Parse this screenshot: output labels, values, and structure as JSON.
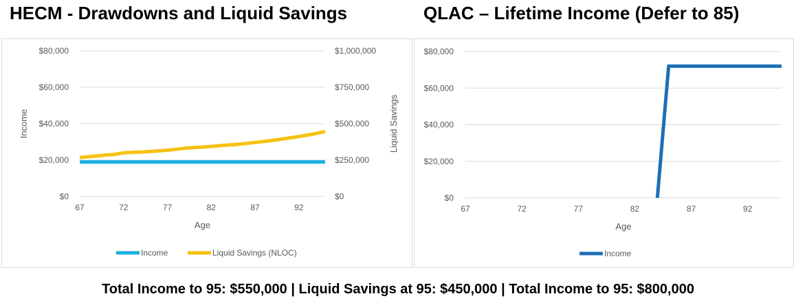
{
  "titles": {
    "left": "HECM - Drawdowns and Liquid Savings",
    "right": "QLAC – Lifetime Income (Defer to 85)"
  },
  "footer": "Total Income to 95: $550,000 | Liquid Savings at 95: $450,000 | Total Income to 95: $800,000",
  "colors": {
    "income_light": "#1aafe0",
    "savings": "#f5c211",
    "income_dark": "#1d6fb8",
    "grid": "#d9d9d9",
    "text": "#595959"
  },
  "chart_data": [
    {
      "type": "line",
      "title": "HECM - Drawdowns and Liquid Savings",
      "xlabel": "Age",
      "ylabel": "Income",
      "y2label": "Liquid Savings",
      "xlim": [
        67,
        95
      ],
      "ylim": [
        0,
        80000
      ],
      "y2lim": [
        0,
        1000000
      ],
      "x_ticks": [
        "67",
        "72",
        "77",
        "82",
        "87",
        "92"
      ],
      "y_ticks": [
        "$0",
        "$20,000",
        "$40,000",
        "$60,000",
        "$80,000"
      ],
      "y2_ticks": [
        "$0",
        "$250,000",
        "$500,000",
        "$750,000",
        "$1,000,000"
      ],
      "grid": true,
      "legend_position": "bottom",
      "series": [
        {
          "name": "Income",
          "axis": "left",
          "color": "#1aafe0",
          "x": [
            67,
            95
          ],
          "values": [
            19000,
            19000
          ]
        },
        {
          "name": "Liquid Savings (NLOC)",
          "axis": "right",
          "color": "#f5c211",
          "x": [
            67,
            68,
            69,
            70,
            71,
            72,
            73,
            74,
            75,
            76,
            77,
            78,
            79,
            80,
            81,
            82,
            83,
            84,
            85,
            86,
            87,
            88,
            89,
            90,
            91,
            92,
            93,
            94,
            95
          ],
          "values": [
            268000,
            273000,
            279000,
            285000,
            289000,
            300000,
            303000,
            305000,
            309000,
            313000,
            318000,
            324000,
            331000,
            336000,
            339000,
            344000,
            349000,
            354000,
            358000,
            364000,
            371000,
            378000,
            385000,
            394000,
            403000,
            412000,
            422000,
            433000,
            446000
          ]
        }
      ]
    },
    {
      "type": "line",
      "title": "QLAC – Lifetime Income (Defer to 85)",
      "xlabel": "Age",
      "ylabel": "",
      "xlim": [
        67,
        95
      ],
      "ylim": [
        0,
        80000
      ],
      "x_ticks": [
        "67",
        "72",
        "77",
        "82",
        "87",
        "92"
      ],
      "y_ticks": [
        "$0",
        "$20,000",
        "$40,000",
        "$60,000",
        "$80,000"
      ],
      "grid": true,
      "legend_position": "bottom",
      "series": [
        {
          "name": "Income",
          "axis": "left",
          "color": "#1d6fb8",
          "x": [
            84,
            85,
            95
          ],
          "values": [
            0,
            72000,
            72000
          ]
        }
      ]
    }
  ]
}
